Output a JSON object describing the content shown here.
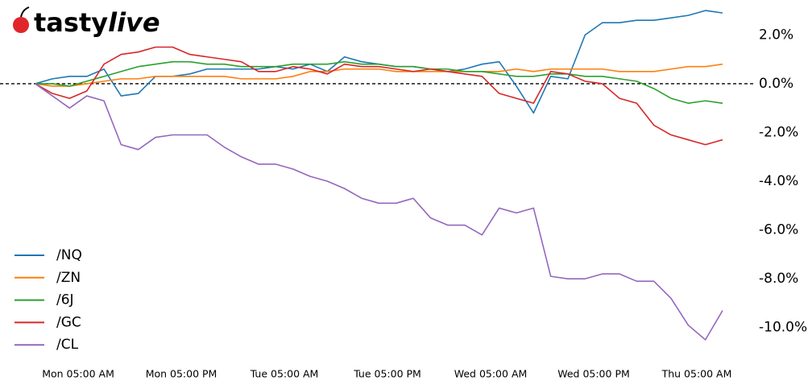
{
  "chart_data": {
    "type": "line",
    "logo": {
      "brand": "tasty",
      "suffix": "live"
    },
    "x": [
      0,
      2,
      4,
      6,
      8,
      10,
      12,
      14,
      16,
      18,
      20,
      22,
      24,
      26,
      28,
      30,
      32,
      34,
      36,
      38,
      40,
      42,
      44,
      46,
      48,
      50,
      52,
      54,
      56,
      58,
      60,
      62,
      64,
      66,
      68,
      70,
      72,
      74,
      76,
      78,
      80
    ],
    "xlim": [
      0,
      80
    ],
    "xticks": [
      {
        "value": 5,
        "label": "Mon 05:00 AM"
      },
      {
        "value": 17,
        "label": "Mon 05:00 PM"
      },
      {
        "value": 29,
        "label": "Tue 05:00 AM"
      },
      {
        "value": 41,
        "label": "Tue 05:00 PM"
      },
      {
        "value": 53,
        "label": "Wed 05:00 AM"
      },
      {
        "value": 65,
        "label": "Wed 05:00 PM"
      },
      {
        "value": 77,
        "label": "Thu 05:00 AM"
      }
    ],
    "ylim": [
      -11,
      3.3
    ],
    "yticks": [
      {
        "value": 2,
        "label": "2.0%"
      },
      {
        "value": 0,
        "label": "0.0%"
      },
      {
        "value": -2,
        "label": "-2.0%"
      },
      {
        "value": -4,
        "label": "-4.0%"
      },
      {
        "value": -6,
        "label": "-6.0%"
      },
      {
        "value": -8,
        "label": "-8.0%"
      },
      {
        "value": -10,
        "label": "-10.0%"
      }
    ],
    "legend": "lower left",
    "series": [
      {
        "name": "/NQ",
        "color": "#1f77b4",
        "values": [
          0,
          0.2,
          0.3,
          0.3,
          0.6,
          -0.5,
          -0.4,
          0.3,
          0.3,
          0.4,
          0.6,
          0.6,
          0.6,
          0.6,
          0.7,
          0.6,
          0.8,
          0.5,
          1.1,
          0.9,
          0.8,
          0.7,
          0.7,
          0.6,
          0.5,
          0.6,
          0.8,
          0.9,
          -0.1,
          -1.2,
          0.3,
          0.2,
          2.0,
          2.5,
          2.5,
          2.6,
          2.6,
          2.7,
          2.8,
          3.0,
          2.9
        ]
      },
      {
        "name": "/ZN",
        "color": "#ff7f0e",
        "values": [
          0,
          -0.1,
          -0.1,
          0,
          0.1,
          0.2,
          0.2,
          0.3,
          0.3,
          0.3,
          0.3,
          0.3,
          0.2,
          0.2,
          0.2,
          0.3,
          0.5,
          0.5,
          0.6,
          0.6,
          0.6,
          0.5,
          0.5,
          0.5,
          0.5,
          0.5,
          0.5,
          0.5,
          0.6,
          0.5,
          0.6,
          0.6,
          0.6,
          0.6,
          0.5,
          0.5,
          0.5,
          0.6,
          0.7,
          0.7,
          0.8
        ]
      },
      {
        "name": "/6J",
        "color": "#2ca02c",
        "values": [
          0,
          0,
          -0.1,
          0.1,
          0.3,
          0.5,
          0.7,
          0.8,
          0.9,
          0.9,
          0.8,
          0.8,
          0.7,
          0.7,
          0.7,
          0.8,
          0.8,
          0.8,
          0.9,
          0.8,
          0.8,
          0.7,
          0.7,
          0.6,
          0.6,
          0.5,
          0.5,
          0.4,
          0.3,
          0.3,
          0.4,
          0.4,
          0.3,
          0.3,
          0.2,
          0.1,
          -0.2,
          -0.6,
          -0.8,
          -0.7,
          -0.8
        ]
      },
      {
        "name": "/GC",
        "color": "#d62728",
        "values": [
          0,
          -0.4,
          -0.6,
          -0.3,
          0.8,
          1.2,
          1.3,
          1.5,
          1.5,
          1.2,
          1.1,
          1.0,
          0.9,
          0.5,
          0.5,
          0.7,
          0.6,
          0.4,
          0.8,
          0.7,
          0.7,
          0.6,
          0.5,
          0.6,
          0.5,
          0.4,
          0.3,
          -0.4,
          -0.6,
          -0.8,
          0.5,
          0.4,
          0.1,
          0,
          -0.6,
          -0.8,
          -1.7,
          -2.1,
          -2.3,
          -2.5,
          -2.3
        ]
      },
      {
        "name": "/CL",
        "color": "#9467bd",
        "values": [
          0,
          -0.5,
          -1.0,
          -0.5,
          -0.7,
          -2.5,
          -2.7,
          -2.2,
          -2.1,
          -2.1,
          -2.1,
          -2.6,
          -3.0,
          -3.3,
          -3.3,
          -3.5,
          -3.8,
          -4.0,
          -4.3,
          -4.7,
          -4.9,
          -4.9,
          -4.7,
          -5.5,
          -5.8,
          -5.8,
          -6.2,
          -5.1,
          -5.3,
          -5.1,
          -7.9,
          -8.0,
          -8.0,
          -7.8,
          -7.8,
          -8.1,
          -8.1,
          -8.8,
          -9.9,
          -10.5,
          -9.3
        ]
      }
    ]
  }
}
